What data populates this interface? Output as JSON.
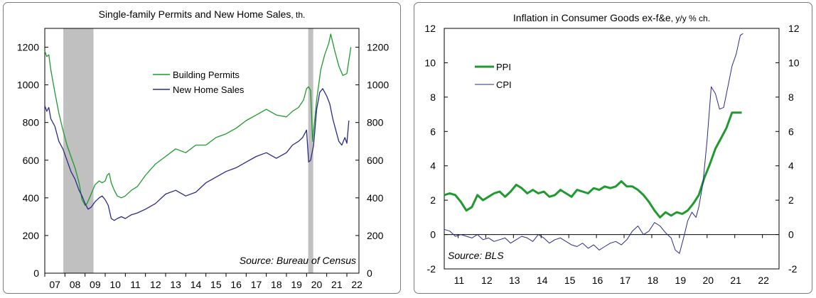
{
  "chart_data": [
    {
      "type": "line",
      "title": "Single-family Permits and New Home Sales",
      "title_suffix": ", th.",
      "x_ticks": [
        "07",
        "08",
        "09",
        "10",
        "11",
        "12",
        "13",
        "14",
        "15",
        "16",
        "17",
        "18",
        "19",
        "20",
        "21",
        "22"
      ],
      "xlim": [
        2007,
        2022.6
      ],
      "ylim": [
        0,
        1300
      ],
      "y_ticks": [
        0,
        200,
        400,
        600,
        800,
        1000,
        1200
      ],
      "y_ticks_right": [
        0,
        200,
        400,
        600,
        800,
        1000,
        1200
      ],
      "recessions": [
        [
          2007.92,
          2009.42
        ],
        [
          2020.08,
          2020.33
        ]
      ],
      "legend_position": "upper-center",
      "source": "Source: Bureau of Census",
      "colors": {
        "permits": "#1f9a2e",
        "sales": "#2a2a8a",
        "recession": "#c0c0c0"
      },
      "series": [
        {
          "name": "Building Permits",
          "x": [
            2007.0,
            2007.1,
            2007.2,
            2007.3,
            2007.5,
            2007.7,
            2007.9,
            2008.1,
            2008.3,
            2008.5,
            2008.7,
            2008.85,
            2009.0,
            2009.1,
            2009.3,
            2009.5,
            2009.7,
            2009.85,
            2010.0,
            2010.1,
            2010.2,
            2010.3,
            2010.45,
            2010.6,
            2010.8,
            2011.0,
            2011.3,
            2011.6,
            2012.0,
            2012.5,
            2013.0,
            2013.5,
            2014.0,
            2014.5,
            2015.0,
            2015.5,
            2016.0,
            2016.5,
            2017.0,
            2017.5,
            2018.0,
            2018.5,
            2019.0,
            2019.3,
            2019.6,
            2019.85,
            2020.0,
            2020.1,
            2020.2,
            2020.3,
            2020.5,
            2020.7,
            2020.9,
            2021.1,
            2021.2,
            2021.4,
            2021.6,
            2021.8,
            2022.0,
            2022.1,
            2022.2
          ],
          "values": [
            1180,
            1150,
            1160,
            1080,
            960,
            850,
            760,
            680,
            620,
            560,
            480,
            390,
            360,
            370,
            420,
            470,
            490,
            480,
            490,
            520,
            530,
            480,
            440,
            410,
            400,
            410,
            440,
            460,
            520,
            580,
            620,
            660,
            640,
            680,
            680,
            720,
            740,
            770,
            810,
            840,
            870,
            840,
            830,
            860,
            880,
            920,
            980,
            990,
            970,
            700,
            920,
            1080,
            1160,
            1220,
            1270,
            1180,
            1100,
            1050,
            1060,
            1130,
            1200
          ]
        },
        {
          "name": "New Home Sales",
          "x": [
            2007.0,
            2007.1,
            2007.2,
            2007.3,
            2007.5,
            2007.7,
            2007.9,
            2008.1,
            2008.3,
            2008.5,
            2008.7,
            2008.85,
            2009.0,
            2009.15,
            2009.3,
            2009.5,
            2009.7,
            2009.85,
            2010.0,
            2010.15,
            2010.3,
            2010.45,
            2010.6,
            2010.8,
            2011.0,
            2011.3,
            2011.6,
            2012.0,
            2012.5,
            2013.0,
            2013.5,
            2014.0,
            2014.5,
            2015.0,
            2015.5,
            2016.0,
            2016.5,
            2017.0,
            2017.5,
            2018.0,
            2018.5,
            2019.0,
            2019.3,
            2019.6,
            2019.8,
            2020.0,
            2020.1,
            2020.2,
            2020.35,
            2020.5,
            2020.65,
            2020.8,
            2021.0,
            2021.15,
            2021.3,
            2021.45,
            2021.6,
            2021.75,
            2021.9,
            2022.0,
            2022.1
          ],
          "values": [
            890,
            860,
            880,
            820,
            780,
            700,
            660,
            600,
            540,
            500,
            440,
            410,
            370,
            340,
            350,
            380,
            400,
            410,
            390,
            360,
            290,
            280,
            290,
            300,
            290,
            310,
            320,
            340,
            370,
            420,
            440,
            410,
            430,
            480,
            510,
            540,
            560,
            590,
            620,
            640,
            610,
            640,
            680,
            700,
            720,
            760,
            590,
            600,
            680,
            870,
            960,
            980,
            940,
            900,
            820,
            760,
            700,
            680,
            720,
            690,
            810
          ]
        }
      ]
    },
    {
      "type": "line",
      "title": "Inflation in Consumer Goods ex-f&e",
      "title_suffix": ", y/y % ch.",
      "x_ticks": [
        "11",
        "12",
        "13",
        "14",
        "15",
        "16",
        "17",
        "18",
        "19",
        "20",
        "21",
        "22"
      ],
      "xlim": [
        2010.5,
        2022.6
      ],
      "ylim": [
        -2,
        12
      ],
      "y_ticks": [
        -2,
        0,
        2,
        4,
        6,
        8,
        10,
        12
      ],
      "y_ticks_right": [
        -2,
        0,
        2,
        4,
        6,
        8,
        10,
        12
      ],
      "legend_position": "upper-left",
      "source": "Source: BLS",
      "colors": {
        "ppi": "#1f9a2e",
        "cpi": "#2a2a8a"
      },
      "series": [
        {
          "name": "PPI",
          "x": [
            2010.5,
            2010.7,
            2010.9,
            2011.1,
            2011.3,
            2011.5,
            2011.7,
            2011.9,
            2012.1,
            2012.3,
            2012.5,
            2012.7,
            2012.9,
            2013.1,
            2013.3,
            2013.5,
            2013.7,
            2013.9,
            2014.1,
            2014.3,
            2014.5,
            2014.7,
            2014.9,
            2015.1,
            2015.3,
            2015.5,
            2015.7,
            2015.9,
            2016.1,
            2016.3,
            2016.5,
            2016.7,
            2016.9,
            2017.1,
            2017.3,
            2017.5,
            2017.7,
            2017.9,
            2018.1,
            2018.3,
            2018.5,
            2018.7,
            2018.9,
            2019.1,
            2019.3,
            2019.5,
            2019.7,
            2019.9,
            2020.1,
            2020.3,
            2020.5,
            2020.7,
            2020.9,
            2021.1,
            2021.25
          ],
          "values": [
            2.3,
            2.4,
            2.3,
            1.9,
            1.4,
            1.6,
            2.3,
            2.0,
            2.2,
            2.4,
            2.5,
            2.2,
            2.5,
            2.9,
            2.7,
            2.4,
            2.6,
            2.4,
            2.5,
            2.2,
            2.3,
            2.6,
            2.4,
            2.2,
            2.6,
            2.5,
            2.4,
            2.7,
            2.6,
            2.8,
            2.7,
            2.8,
            3.1,
            2.8,
            2.8,
            2.6,
            2.3,
            1.9,
            1.4,
            1.0,
            1.3,
            1.1,
            1.3,
            1.2,
            1.4,
            1.8,
            2.3,
            3.3,
            4.1,
            5.0,
            5.6,
            6.2,
            7.1,
            7.1,
            7.1
          ]
        },
        {
          "name": "CPI",
          "x": [
            2010.5,
            2010.7,
            2010.9,
            2011.1,
            2011.3,
            2011.5,
            2011.7,
            2011.9,
            2012.1,
            2012.3,
            2012.5,
            2012.7,
            2012.9,
            2013.1,
            2013.3,
            2013.5,
            2013.7,
            2013.9,
            2014.1,
            2014.3,
            2014.5,
            2014.7,
            2014.9,
            2015.1,
            2015.3,
            2015.5,
            2015.7,
            2015.9,
            2016.1,
            2016.3,
            2016.5,
            2016.7,
            2016.9,
            2017.1,
            2017.3,
            2017.5,
            2017.7,
            2017.9,
            2018.1,
            2018.3,
            2018.5,
            2018.7,
            2018.85,
            2019.0,
            2019.15,
            2019.3,
            2019.45,
            2019.6,
            2019.7,
            2019.85,
            2020.0,
            2020.15,
            2020.3,
            2020.45,
            2020.6,
            2020.75,
            2020.9,
            2021.05,
            2021.2,
            2021.3
          ],
          "values": [
            0.3,
            0.2,
            -0.1,
            0.0,
            -0.1,
            -0.2,
            0.0,
            -0.3,
            -0.2,
            -0.4,
            -0.3,
            -0.2,
            -0.5,
            -0.3,
            -0.1,
            -0.2,
            -0.4,
            0.0,
            -0.2,
            -0.5,
            -0.3,
            -0.2,
            -0.4,
            -0.6,
            -0.7,
            -0.5,
            -0.8,
            -0.6,
            -0.9,
            -0.7,
            -0.5,
            -0.4,
            -0.6,
            -0.3,
            0.2,
            0.5,
            0.0,
            0.2,
            0.7,
            0.5,
            0.1,
            -0.2,
            -0.9,
            -1.1,
            -0.2,
            0.8,
            1.3,
            1.0,
            1.6,
            3.0,
            5.5,
            8.6,
            8.2,
            7.3,
            7.4,
            8.6,
            9.8,
            10.5,
            11.6,
            11.7
          ]
        }
      ]
    }
  ]
}
